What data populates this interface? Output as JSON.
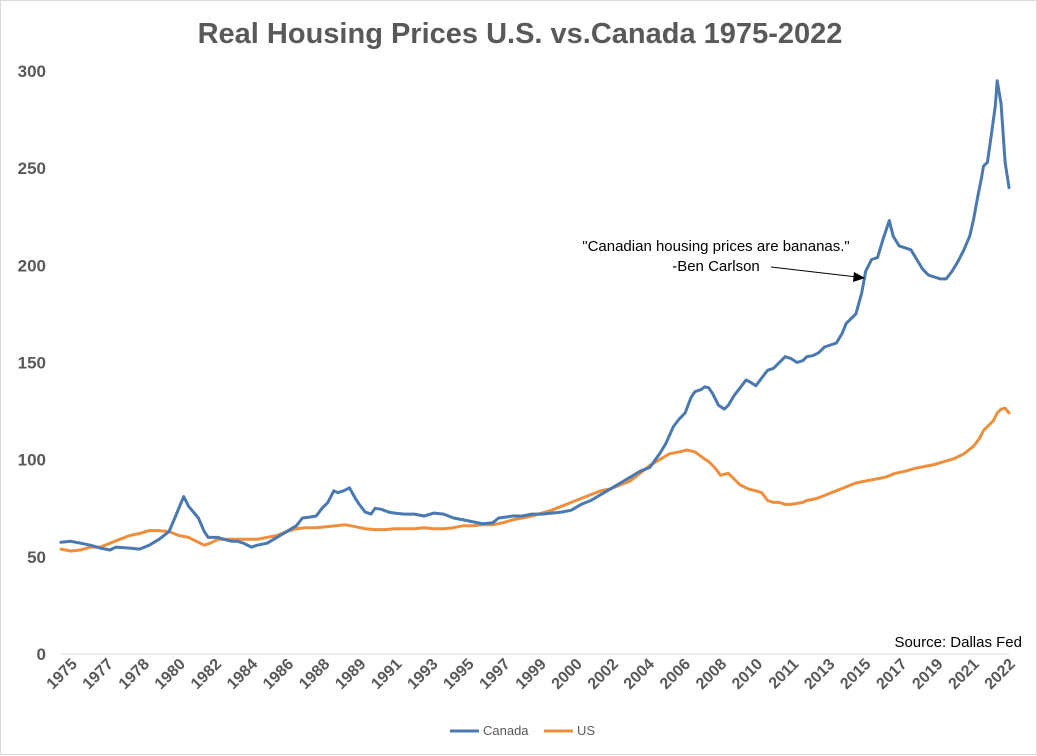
{
  "chart_data": {
    "type": "line",
    "title": "Real Housing Prices U.S. vs.Canada 1975-2022",
    "xlabel": "",
    "ylabel": "",
    "ylim": [
      0,
      300
    ],
    "yticks": [
      0,
      50,
      100,
      150,
      200,
      250,
      300
    ],
    "xticks": [
      "1975",
      "1977",
      "1978",
      "1980",
      "1982",
      "1984",
      "1986",
      "1988",
      "1989",
      "1991",
      "1993",
      "1995",
      "1997",
      "1999",
      "2000",
      "2002",
      "2004",
      "2006",
      "2008",
      "2010",
      "2011",
      "2013",
      "2015",
      "2017",
      "2019",
      "2021",
      "2022"
    ],
    "xlim": [
      1975,
      2022.6
    ],
    "grid": false,
    "legend_position": "bottom",
    "annotation": [
      "\"Canadian housing prices are bananas.\"",
      "-Ben Carlson"
    ],
    "source": "Source: Dallas Fed",
    "series": [
      {
        "name": "Canada",
        "color": "#4a78b0",
        "points": [
          [
            1975.0,
            57.5
          ],
          [
            1975.5,
            58
          ],
          [
            1976.0,
            57
          ],
          [
            1976.5,
            56
          ],
          [
            1977.0,
            54.5
          ],
          [
            1977.5,
            53.5
          ],
          [
            1977.8,
            55
          ],
          [
            1978.5,
            54.5
          ],
          [
            1979.0,
            54
          ],
          [
            1979.5,
            56
          ],
          [
            1980.0,
            59
          ],
          [
            1980.5,
            63
          ],
          [
            1980.8,
            70
          ],
          [
            1981.0,
            75
          ],
          [
            1981.25,
            81
          ],
          [
            1981.5,
            76
          ],
          [
            1982.0,
            70
          ],
          [
            1982.3,
            63
          ],
          [
            1982.5,
            60
          ],
          [
            1983.0,
            60
          ],
          [
            1983.3,
            59
          ],
          [
            1983.7,
            58
          ],
          [
            1984.0,
            58
          ],
          [
            1984.3,
            57
          ],
          [
            1984.7,
            55
          ],
          [
            1985.0,
            56
          ],
          [
            1985.5,
            57
          ],
          [
            1986.0,
            60
          ],
          [
            1986.5,
            63
          ],
          [
            1987.0,
            66
          ],
          [
            1987.3,
            70
          ],
          [
            1987.7,
            70.5
          ],
          [
            1988.0,
            71
          ],
          [
            1988.3,
            75
          ],
          [
            1988.6,
            78
          ],
          [
            1988.9,
            84
          ],
          [
            1989.1,
            83
          ],
          [
            1989.4,
            84
          ],
          [
            1989.7,
            85.5
          ],
          [
            1990.0,
            80
          ],
          [
            1990.2,
            77
          ],
          [
            1990.5,
            73
          ],
          [
            1990.8,
            72
          ],
          [
            1991.0,
            75
          ],
          [
            1991.3,
            74.5
          ],
          [
            1991.7,
            73
          ],
          [
            1992.0,
            72.5
          ],
          [
            1992.5,
            72
          ],
          [
            1993.0,
            72
          ],
          [
            1993.5,
            71
          ],
          [
            1994.0,
            72.5
          ],
          [
            1994.5,
            72
          ],
          [
            1995.0,
            70
          ],
          [
            1995.5,
            69
          ],
          [
            1996.0,
            68
          ],
          [
            1996.5,
            67
          ],
          [
            1997.0,
            67.5
          ],
          [
            1997.3,
            70
          ],
          [
            1997.7,
            70.5
          ],
          [
            1998.0,
            71
          ],
          [
            1998.5,
            71
          ],
          [
            1999.0,
            72
          ],
          [
            1999.5,
            72
          ],
          [
            2000.0,
            72.5
          ],
          [
            2000.5,
            73
          ],
          [
            2001.0,
            74
          ],
          [
            2001.5,
            77
          ],
          [
            2002.0,
            79
          ],
          [
            2002.5,
            82
          ],
          [
            2003.0,
            85
          ],
          [
            2003.5,
            88
          ],
          [
            2004.0,
            91
          ],
          [
            2004.5,
            94
          ],
          [
            2005.0,
            96
          ],
          [
            2005.5,
            103
          ],
          [
            2005.8,
            108
          ],
          [
            2006.2,
            117
          ],
          [
            2006.5,
            121
          ],
          [
            2006.8,
            124
          ],
          [
            2007.1,
            132
          ],
          [
            2007.3,
            135
          ],
          [
            2007.6,
            136
          ],
          [
            2007.8,
            137.5
          ],
          [
            2008.0,
            137
          ],
          [
            2008.2,
            134
          ],
          [
            2008.5,
            128
          ],
          [
            2008.8,
            126
          ],
          [
            2009.0,
            128
          ],
          [
            2009.3,
            133
          ],
          [
            2009.6,
            137
          ],
          [
            2009.9,
            141
          ],
          [
            2010.1,
            140
          ],
          [
            2010.4,
            138
          ],
          [
            2010.7,
            142
          ],
          [
            2011.0,
            146
          ],
          [
            2011.3,
            147
          ],
          [
            2011.6,
            150
          ],
          [
            2011.9,
            153
          ],
          [
            2012.2,
            152
          ],
          [
            2012.5,
            150
          ],
          [
            2012.8,
            151
          ],
          [
            2013.0,
            153
          ],
          [
            2013.3,
            153.5
          ],
          [
            2013.6,
            155
          ],
          [
            2013.9,
            158
          ],
          [
            2014.2,
            159
          ],
          [
            2014.5,
            160
          ],
          [
            2014.8,
            165
          ],
          [
            2015.0,
            170
          ],
          [
            2015.2,
            172
          ],
          [
            2015.5,
            175
          ],
          [
            2015.8,
            186
          ],
          [
            2016.0,
            197
          ],
          [
            2016.3,
            203
          ],
          [
            2016.6,
            204
          ],
          [
            2016.9,
            214
          ],
          [
            2017.2,
            223
          ],
          [
            2017.4,
            215
          ],
          [
            2017.7,
            210
          ],
          [
            2018.0,
            209
          ],
          [
            2018.3,
            208
          ],
          [
            2018.6,
            203
          ],
          [
            2018.9,
            198
          ],
          [
            2019.2,
            195
          ],
          [
            2019.5,
            194
          ],
          [
            2019.8,
            193
          ],
          [
            2020.1,
            193
          ],
          [
            2020.4,
            197
          ],
          [
            2020.7,
            202
          ],
          [
            2021.0,
            208
          ],
          [
            2021.3,
            215
          ],
          [
            2021.5,
            224
          ],
          [
            2021.7,
            235
          ],
          [
            2021.9,
            245
          ],
          [
            2022.0,
            251
          ],
          [
            2022.2,
            253
          ],
          [
            2022.4,
            267
          ],
          [
            2022.6,
            282
          ],
          [
            2022.7,
            295
          ],
          [
            2022.9,
            283
          ],
          [
            2023.1,
            253
          ],
          [
            2023.3,
            240
          ]
        ]
      },
      {
        "name": "US",
        "color": "#ed8f3d",
        "points": [
          [
            1975.0,
            54
          ],
          [
            1975.5,
            53
          ],
          [
            1976.0,
            53.5
          ],
          [
            1976.5,
            55
          ],
          [
            1977.0,
            55
          ],
          [
            1977.5,
            57
          ],
          [
            1978.0,
            59
          ],
          [
            1978.5,
            61
          ],
          [
            1979.0,
            62
          ],
          [
            1979.5,
            63.5
          ],
          [
            1980.0,
            63.5
          ],
          [
            1980.5,
            63
          ],
          [
            1981.0,
            61
          ],
          [
            1981.5,
            60
          ],
          [
            1982.0,
            57.5
          ],
          [
            1982.3,
            56
          ],
          [
            1982.6,
            57
          ],
          [
            1983.0,
            59
          ],
          [
            1983.5,
            59
          ],
          [
            1984.0,
            59
          ],
          [
            1984.5,
            59
          ],
          [
            1985.0,
            59
          ],
          [
            1985.5,
            60
          ],
          [
            1986.0,
            61
          ],
          [
            1986.5,
            63
          ],
          [
            1987.0,
            64.5
          ],
          [
            1987.5,
            65
          ],
          [
            1988.0,
            65
          ],
          [
            1988.5,
            65.5
          ],
          [
            1989.0,
            66
          ],
          [
            1989.5,
            66.5
          ],
          [
            1990.0,
            65.5
          ],
          [
            1990.5,
            64.5
          ],
          [
            1991.0,
            64
          ],
          [
            1991.5,
            64
          ],
          [
            1992.0,
            64.5
          ],
          [
            1992.5,
            64.5
          ],
          [
            1993.0,
            64.5
          ],
          [
            1993.5,
            65
          ],
          [
            1994.0,
            64.5
          ],
          [
            1994.5,
            64.5
          ],
          [
            1995.0,
            65
          ],
          [
            1995.5,
            66
          ],
          [
            1996.0,
            66
          ],
          [
            1996.5,
            66.5
          ],
          [
            1997.0,
            66.5
          ],
          [
            1997.5,
            67.5
          ],
          [
            1998.0,
            69
          ],
          [
            1998.5,
            70
          ],
          [
            1999.0,
            71
          ],
          [
            1999.5,
            72.5
          ],
          [
            2000.0,
            74
          ],
          [
            2000.5,
            76
          ],
          [
            2001.0,
            78
          ],
          [
            2001.5,
            80
          ],
          [
            2002.0,
            82
          ],
          [
            2002.5,
            84
          ],
          [
            2003.0,
            85
          ],
          [
            2003.5,
            87
          ],
          [
            2004.0,
            89
          ],
          [
            2004.5,
            93
          ],
          [
            2005.0,
            97
          ],
          [
            2005.5,
            100
          ],
          [
            2006.0,
            103
          ],
          [
            2006.5,
            104
          ],
          [
            2006.9,
            105
          ],
          [
            2007.3,
            104
          ],
          [
            2007.7,
            101
          ],
          [
            2008.0,
            99
          ],
          [
            2008.3,
            96
          ],
          [
            2008.6,
            92
          ],
          [
            2009.0,
            93
          ],
          [
            2009.3,
            90
          ],
          [
            2009.6,
            87
          ],
          [
            2010.0,
            85
          ],
          [
            2010.4,
            84
          ],
          [
            2010.7,
            83
          ],
          [
            2011.0,
            79
          ],
          [
            2011.3,
            78
          ],
          [
            2011.6,
            78
          ],
          [
            2011.9,
            77
          ],
          [
            2012.2,
            77
          ],
          [
            2012.5,
            77.5
          ],
          [
            2012.8,
            78
          ],
          [
            2013.0,
            79
          ],
          [
            2013.5,
            80
          ],
          [
            2014.0,
            82
          ],
          [
            2014.5,
            84
          ],
          [
            2015.0,
            86
          ],
          [
            2015.5,
            88
          ],
          [
            2016.0,
            89
          ],
          [
            2016.5,
            90
          ],
          [
            2017.0,
            91
          ],
          [
            2017.5,
            93
          ],
          [
            2018.0,
            94
          ],
          [
            2018.5,
            95.5
          ],
          [
            2019.0,
            96.5
          ],
          [
            2019.5,
            97.5
          ],
          [
            2020.0,
            99
          ],
          [
            2020.5,
            100.5
          ],
          [
            2021.0,
            103
          ],
          [
            2021.5,
            107
          ],
          [
            2021.8,
            111
          ],
          [
            2022.0,
            115
          ],
          [
            2022.3,
            118
          ],
          [
            2022.5,
            120
          ],
          [
            2022.7,
            124
          ],
          [
            2022.9,
            126
          ],
          [
            2023.1,
            126.5
          ],
          [
            2023.3,
            124
          ]
        ]
      }
    ]
  }
}
